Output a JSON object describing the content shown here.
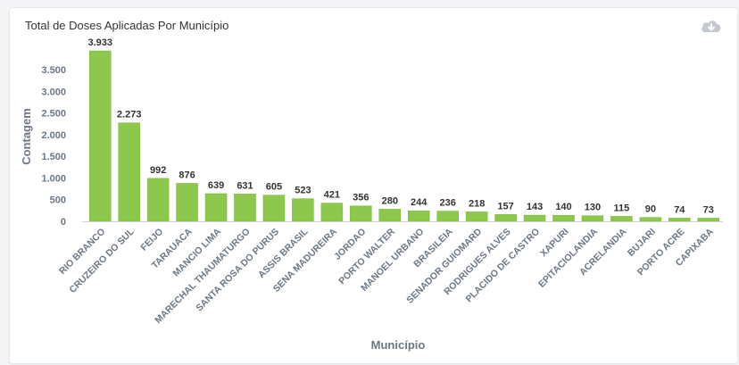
{
  "card": {
    "title": "Total de Doses Aplicadas Por Município",
    "download_icon": "cloud-download-icon"
  },
  "colors": {
    "bar": "#8cc84b",
    "bar_stroke": "#7db43e",
    "axis_text": "#6b7785",
    "axis_title": "#6b7785",
    "label": "#333333",
    "icon": "#c4c9d0"
  },
  "chart_data": {
    "type": "bar",
    "title": "Total de Doses Aplicadas Por Município",
    "xlabel": "Município",
    "ylabel": "Contagem",
    "ylim": [
      0,
      3933
    ],
    "yticks": [
      0,
      500,
      1000,
      1500,
      2000,
      2500,
      3000,
      3500
    ],
    "ytick_labels": [
      "0",
      "500",
      "1.000",
      "1.500",
      "2.000",
      "2.500",
      "3.000",
      "3.500"
    ],
    "grid": false,
    "categories": [
      "RIO BRANCO",
      "CRUZEIRO DO SUL",
      "FEIJO",
      "TARAUACA",
      "MANCIO LIMA",
      "MARECHAL THAUMATURGO",
      "SANTA ROSA DO PURUS",
      "ASSIS BRASIL",
      "SENA MADUREIRA",
      "JORDAO",
      "PORTO WALTER",
      "MANOEL URBANO",
      "BRASILEIA",
      "SENADOR GUIOMARD",
      "RODRIGUES ALVES",
      "PLACIDO DE CASTRO",
      "XAPURI",
      "EPITACIOLANDIA",
      "ACRELANDIA",
      "BUJARI",
      "PORTO ACRE",
      "CAPIXABA"
    ],
    "values": [
      3933,
      2273,
      992,
      876,
      639,
      631,
      605,
      523,
      421,
      356,
      280,
      244,
      236,
      218,
      157,
      143,
      140,
      130,
      115,
      90,
      74,
      73
    ],
    "value_labels": [
      "3.933",
      "2.273",
      "992",
      "876",
      "639",
      "631",
      "605",
      "523",
      "421",
      "356",
      "280",
      "244",
      "236",
      "218",
      "157",
      "143",
      "140",
      "130",
      "115",
      "90",
      "74",
      "73"
    ]
  }
}
